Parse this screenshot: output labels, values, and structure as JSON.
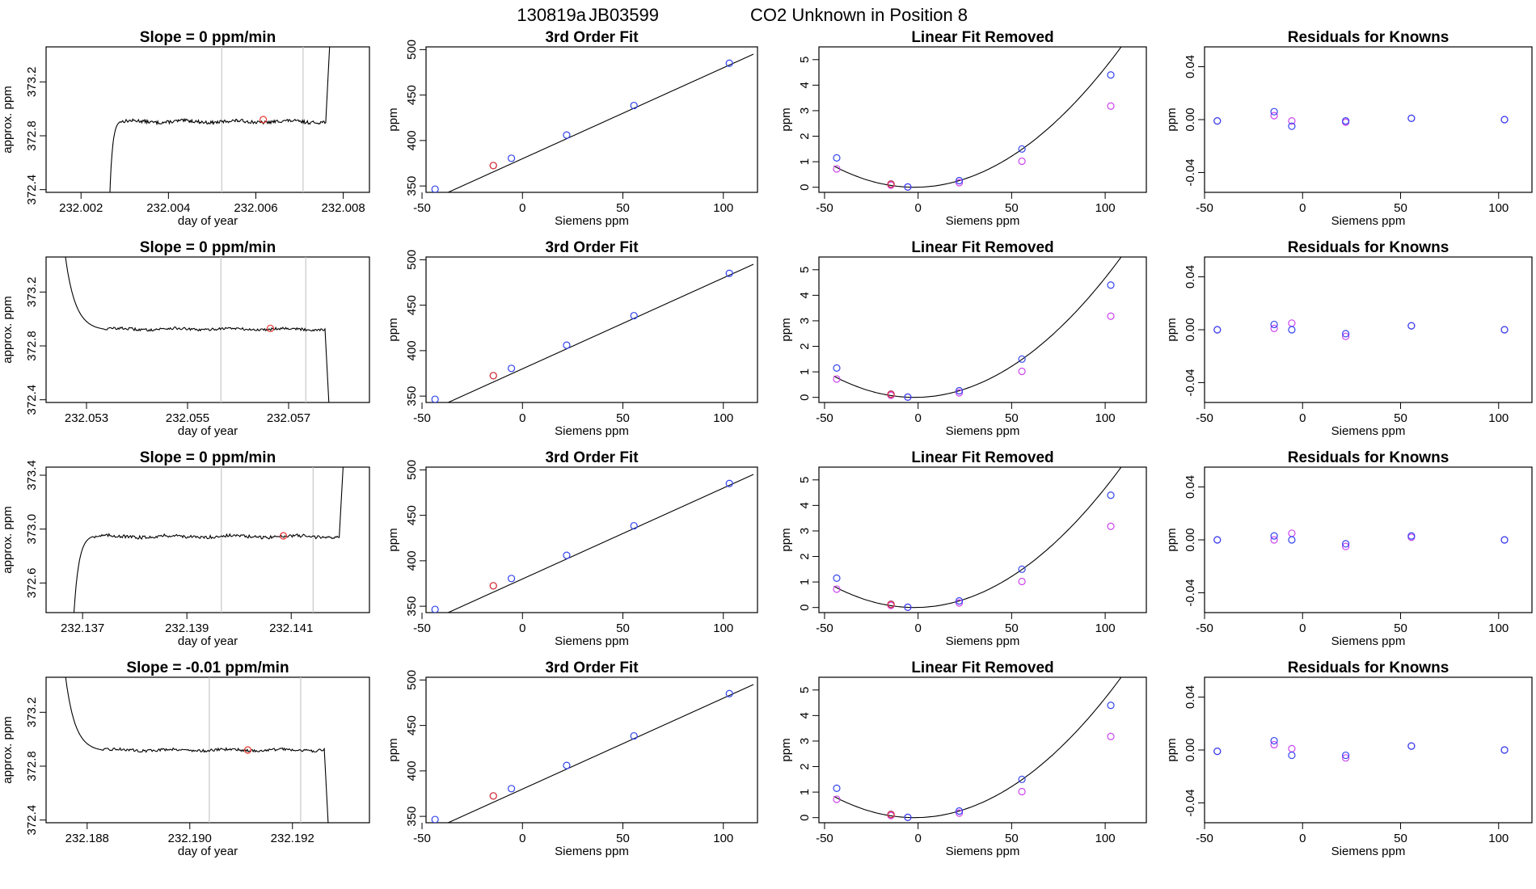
{
  "figure": {
    "title_run": "130819a",
    "title_tank": "JB03599",
    "title_desc": "CO2 Unknown in Position  8"
  },
  "colors": {
    "axis": "#000000",
    "trace": "#000000",
    "guide": "#c8c8c8",
    "point_red": "#e8352e",
    "point_blue": "#3344ee",
    "point_magenta": "#cc44ee"
  },
  "chart_data": [
    {
      "type": "line",
      "row": 0,
      "col": 0,
      "title": "Slope =  0  ppm/min",
      "xlabel": "day of year",
      "ylabel": "approx. ppm",
      "xlim": [
        232.0012,
        232.0086
      ],
      "ylim": [
        372.38,
        373.46
      ],
      "xticks": [
        232.002,
        232.004,
        232.006,
        232.008
      ],
      "xtick_labels": [
        "232.002",
        "232.004",
        "232.006",
        "232.008"
      ],
      "yticks": [
        372.4,
        372.8,
        373.2
      ],
      "ytick_labels": [
        "372.4",
        "372.8",
        "373.2"
      ],
      "vlines": [
        232.00522,
        232.00708
      ],
      "marker": {
        "x": 232.00617,
        "y": 372.92
      },
      "trace": {
        "x_start": 232.00265,
        "x_plateau": 232.0029,
        "level": 372.905,
        "x_end": 232.0076,
        "rise_to": 373.46,
        "noise": 0.012
      }
    },
    {
      "type": "line",
      "row": 1,
      "col": 0,
      "title": "Slope =  0  ppm/min",
      "xlabel": "day of year",
      "ylabel": "approx. ppm",
      "xlim": [
        232.0522,
        232.0586
      ],
      "ylim": [
        372.38,
        373.46
      ],
      "xticks": [
        232.053,
        232.055,
        232.057
      ],
      "xtick_labels": [
        "232.053",
        "232.055",
        "232.057"
      ],
      "yticks": [
        372.4,
        372.8,
        373.2
      ],
      "ytick_labels": [
        "372.4",
        "372.8",
        "373.2"
      ],
      "vlines": [
        232.05566,
        232.05734
      ],
      "marker": {
        "x": 232.05664,
        "y": 372.93
      },
      "trace": {
        "x_start": 232.05255,
        "x_plateau": 232.05335,
        "level": 372.925,
        "x_end": 232.05772,
        "rise_to": 372.38,
        "noise": 0.01
      }
    },
    {
      "type": "line",
      "row": 2,
      "col": 0,
      "title": "Slope =  0  ppm/min",
      "xlabel": "day of year",
      "ylabel": "approx. ppm",
      "xlim": [
        232.1363,
        232.1425
      ],
      "ylim": [
        372.38,
        373.46
      ],
      "xticks": [
        232.137,
        232.139,
        232.141
      ],
      "xtick_labels": [
        "232.137",
        "232.139",
        "232.141"
      ],
      "yticks": [
        372.6,
        373.0,
        373.4
      ],
      "ytick_labels": [
        "372.6",
        "373.0",
        "373.4"
      ],
      "vlines": [
        232.13966,
        232.14142
      ],
      "marker": {
        "x": 232.14085,
        "y": 372.95
      },
      "trace": {
        "x_start": 232.13682,
        "x_plateau": 232.1372,
        "level": 372.945,
        "x_end": 232.14192,
        "rise_to": 373.46,
        "noise": 0.012
      }
    },
    {
      "type": "line",
      "row": 3,
      "col": 0,
      "title": "Slope =  -0.01  ppm/min",
      "xlabel": "day of year",
      "ylabel": "approx. ppm",
      "xlim": [
        232.1872,
        232.1935
      ],
      "ylim": [
        372.38,
        373.46
      ],
      "xticks": [
        232.188,
        232.19,
        232.192
      ],
      "xtick_labels": [
        "232.188",
        "232.190",
        "232.192"
      ],
      "yticks": [
        372.4,
        372.8,
        373.2
      ],
      "ytick_labels": [
        "372.4",
        "372.8",
        "373.2"
      ],
      "vlines": [
        232.19038,
        232.19216
      ],
      "marker": {
        "x": 232.19113,
        "y": 372.92
      },
      "trace": {
        "x_start": 232.18755,
        "x_plateau": 232.1883,
        "level": 372.92,
        "x_end": 232.19262,
        "rise_to": 372.38,
        "noise": 0.01
      }
    },
    {
      "type": "scatter",
      "row": 0,
      "col": 1,
      "title": "3rd Order Fit",
      "xlabel": "Siemens ppm",
      "ylabel": "ppm",
      "xlim": [
        -48,
        117
      ],
      "ylim": [
        343,
        503
      ],
      "xticks": [
        -50,
        0,
        50,
        100
      ],
      "xtick_labels": [
        "-50",
        "0",
        "50",
        "100"
      ],
      "yticks": [
        350,
        400,
        450,
        500
      ],
      "ytick_labels": [
        "350",
        "400",
        "450",
        "500"
      ],
      "curve": {
        "x0": -45,
        "x1": 115,
        "coef": [
          380.0,
          1.0,
          0.0,
          0.0
        ]
      },
      "points_blue": {
        "x": [
          -43.5,
          -14.5,
          -5.5,
          22.0,
          55.5,
          103.0
        ],
        "y": [
          346.5,
          372.5,
          380.5,
          406.0,
          438.5,
          485.0
        ]
      },
      "points_red": {
        "x": [
          -14.5
        ],
        "y": [
          372.5
        ]
      }
    },
    {
      "type": "scatter",
      "row": 1,
      "col": 1,
      "title": "3rd Order Fit",
      "xlabel": "Siemens ppm",
      "ylabel": "ppm",
      "xlim": [
        -48,
        117
      ],
      "ylim": [
        343,
        503
      ],
      "xticks": [
        -50,
        0,
        50,
        100
      ],
      "xtick_labels": [
        "-50",
        "0",
        "50",
        "100"
      ],
      "yticks": [
        350,
        400,
        450,
        500
      ],
      "ytick_labels": [
        "350",
        "400",
        "450",
        "500"
      ],
      "curve": {
        "x0": -45,
        "x1": 115,
        "coef": [
          380.0,
          1.0,
          0.0,
          0.0
        ]
      },
      "points_blue": {
        "x": [
          -43.5,
          -14.5,
          -5.5,
          22.0,
          55.5,
          103.0
        ],
        "y": [
          346.5,
          372.5,
          380.5,
          406.0,
          438.5,
          485.0
        ]
      },
      "points_red": {
        "x": [
          -14.5
        ],
        "y": [
          372.5
        ]
      }
    },
    {
      "type": "scatter",
      "row": 2,
      "col": 1,
      "title": "3rd Order Fit",
      "xlabel": "Siemens ppm",
      "ylabel": "ppm",
      "xlim": [
        -48,
        117
      ],
      "ylim": [
        343,
        503
      ],
      "xticks": [
        -50,
        0,
        50,
        100
      ],
      "xtick_labels": [
        "-50",
        "0",
        "50",
        "100"
      ],
      "yticks": [
        350,
        400,
        450,
        500
      ],
      "ytick_labels": [
        "350",
        "400",
        "450",
        "500"
      ],
      "curve": {
        "x0": -45,
        "x1": 115,
        "coef": [
          380.0,
          1.0,
          0.0,
          0.0
        ]
      },
      "points_blue": {
        "x": [
          -43.5,
          -14.5,
          -5.5,
          22.0,
          55.5,
          103.0
        ],
        "y": [
          346.5,
          372.5,
          380.5,
          406.0,
          438.5,
          485.0
        ]
      },
      "points_red": {
        "x": [
          -14.5
        ],
        "y": [
          372.5
        ]
      }
    },
    {
      "type": "scatter",
      "row": 3,
      "col": 1,
      "title": "3rd Order Fit",
      "xlabel": "Siemens ppm",
      "ylabel": "ppm",
      "xlim": [
        -48,
        117
      ],
      "ylim": [
        343,
        503
      ],
      "xticks": [
        -50,
        0,
        50,
        100
      ],
      "xtick_labels": [
        "-50",
        "0",
        "50",
        "100"
      ],
      "yticks": [
        350,
        400,
        450,
        500
      ],
      "ytick_labels": [
        "350",
        "400",
        "450",
        "500"
      ],
      "curve": {
        "x0": -45,
        "x1": 115,
        "coef": [
          380.0,
          1.0,
          0.0,
          0.0
        ]
      },
      "points_blue": {
        "x": [
          -43.5,
          -14.5,
          -5.5,
          22.0,
          55.5,
          103.0
        ],
        "y": [
          346.5,
          372.5,
          380.5,
          406.0,
          438.5,
          485.0
        ]
      },
      "points_red": {
        "x": [
          -14.5
        ],
        "y": [
          372.5
        ]
      }
    },
    {
      "type": "scatter",
      "row": 0,
      "col": 2,
      "title": "Linear Fit Removed",
      "xlabel": "Siemens ppm",
      "ylabel": "ppm",
      "xlim": [
        -53,
        122
      ],
      "ylim": [
        -0.2,
        5.5
      ],
      "xticks": [
        -50,
        0,
        50,
        100
      ],
      "xtick_labels": [
        "-50",
        "0",
        "50",
        "100"
      ],
      "yticks": [
        0,
        1,
        2,
        3,
        4,
        5
      ],
      "ytick_labels": [
        "0",
        "1",
        "2",
        "3",
        "4",
        "5"
      ],
      "curve": {
        "x0": -45,
        "x1": 118,
        "coef": [
          0.0,
          0.0,
          0.00045,
          0.0
        ],
        "shift": -2.0
      },
      "points_blue": {
        "x": [
          -43.5,
          -14.5,
          -5.5,
          22.0,
          55.5,
          103.0
        ],
        "y": [
          1.15,
          0.13,
          0.01,
          0.26,
          1.5,
          4.4
        ]
      },
      "points_magenta": {
        "x": [
          -43.5,
          -14.5,
          -5.5,
          22.0,
          55.5,
          103.0
        ],
        "y": [
          0.72,
          0.08,
          0.01,
          0.18,
          1.02,
          3.18
        ]
      },
      "points_red": {
        "x": [
          -14.5
        ],
        "y": [
          0.12
        ]
      }
    },
    {
      "type": "scatter",
      "row": 1,
      "col": 2,
      "title": "Linear Fit Removed",
      "xlabel": "Siemens ppm",
      "ylabel": "ppm",
      "xlim": [
        -53,
        122
      ],
      "ylim": [
        -0.2,
        5.5
      ],
      "xticks": [
        -50,
        0,
        50,
        100
      ],
      "xtick_labels": [
        "-50",
        "0",
        "50",
        "100"
      ],
      "yticks": [
        0,
        1,
        2,
        3,
        4,
        5
      ],
      "ytick_labels": [
        "0",
        "1",
        "2",
        "3",
        "4",
        "5"
      ],
      "curve": {
        "x0": -45,
        "x1": 118,
        "coef": [
          0.0,
          0.0,
          0.00045,
          0.0
        ],
        "shift": -2.0
      },
      "points_blue": {
        "x": [
          -43.5,
          -14.5,
          -5.5,
          22.0,
          55.5,
          103.0
        ],
        "y": [
          1.15,
          0.13,
          0.01,
          0.26,
          1.5,
          4.4
        ]
      },
      "points_magenta": {
        "x": [
          -43.5,
          -14.5,
          -5.5,
          22.0,
          55.5,
          103.0
        ],
        "y": [
          0.72,
          0.08,
          0.01,
          0.18,
          1.02,
          3.18
        ]
      },
      "points_red": {
        "x": [
          -14.5
        ],
        "y": [
          0.12
        ]
      }
    },
    {
      "type": "scatter",
      "row": 2,
      "col": 2,
      "title": "Linear Fit Removed",
      "xlabel": "Siemens ppm",
      "ylabel": "ppm",
      "xlim": [
        -53,
        122
      ],
      "ylim": [
        -0.2,
        5.5
      ],
      "xticks": [
        -50,
        0,
        50,
        100
      ],
      "xtick_labels": [
        "-50",
        "0",
        "50",
        "100"
      ],
      "yticks": [
        0,
        1,
        2,
        3,
        4,
        5
      ],
      "ytick_labels": [
        "0",
        "1",
        "2",
        "3",
        "4",
        "5"
      ],
      "curve": {
        "x0": -45,
        "x1": 118,
        "coef": [
          0.0,
          0.0,
          0.00045,
          0.0
        ],
        "shift": -2.0
      },
      "points_blue": {
        "x": [
          -43.5,
          -14.5,
          -5.5,
          22.0,
          55.5,
          103.0
        ],
        "y": [
          1.15,
          0.13,
          0.01,
          0.26,
          1.5,
          4.4
        ]
      },
      "points_magenta": {
        "x": [
          -43.5,
          -14.5,
          -5.5,
          22.0,
          55.5,
          103.0
        ],
        "y": [
          0.72,
          0.08,
          0.01,
          0.18,
          1.02,
          3.18
        ]
      },
      "points_red": {
        "x": [
          -14.5
        ],
        "y": [
          0.12
        ]
      }
    },
    {
      "type": "scatter",
      "row": 3,
      "col": 2,
      "title": "Linear Fit Removed",
      "xlabel": "Siemens ppm",
      "ylabel": "ppm",
      "xlim": [
        -53,
        122
      ],
      "ylim": [
        -0.2,
        5.5
      ],
      "xticks": [
        -50,
        0,
        50,
        100
      ],
      "xtick_labels": [
        "-50",
        "0",
        "50",
        "100"
      ],
      "yticks": [
        0,
        1,
        2,
        3,
        4,
        5
      ],
      "ytick_labels": [
        "0",
        "1",
        "2",
        "3",
        "4",
        "5"
      ],
      "curve": {
        "x0": -45,
        "x1": 118,
        "coef": [
          0.0,
          0.0,
          0.00045,
          0.0
        ],
        "shift": -2.0
      },
      "points_blue": {
        "x": [
          -43.5,
          -14.5,
          -5.5,
          22.0,
          55.5,
          103.0
        ],
        "y": [
          1.15,
          0.13,
          0.01,
          0.26,
          1.5,
          4.4
        ]
      },
      "points_magenta": {
        "x": [
          -43.5,
          -14.5,
          -5.5,
          22.0,
          55.5,
          103.0
        ],
        "y": [
          0.72,
          0.08,
          0.01,
          0.18,
          1.02,
          3.18
        ]
      },
      "points_red": {
        "x": [
          -14.5
        ],
        "y": [
          0.12
        ]
      }
    },
    {
      "type": "scatter",
      "row": 0,
      "col": 3,
      "title": "Residuals for Knowns",
      "xlabel": "Siemens ppm",
      "ylabel": "ppm",
      "xlim": [
        -50,
        117
      ],
      "ylim": [
        -0.055,
        0.055
      ],
      "xticks": [
        -50,
        0,
        50,
        100
      ],
      "xtick_labels": [
        "-50",
        "0",
        "50",
        "100"
      ],
      "yticks": [
        -0.04,
        0.0,
        0.04
      ],
      "ytick_labels": [
        "-0.04",
        "0.00",
        "0.04"
      ],
      "points_blue": {
        "x": [
          -43.5,
          -14.5,
          -5.5,
          22.0,
          55.5,
          103.0
        ],
        "y": [
          -0.001,
          0.006,
          -0.005,
          -0.001,
          0.001,
          0.0
        ]
      },
      "points_magenta": {
        "x": [
          -43.5,
          -14.5,
          -5.5,
          22.0,
          55.5,
          103.0
        ],
        "y": [
          -0.001,
          0.003,
          -0.001,
          -0.002,
          0.001,
          0.0
        ]
      }
    },
    {
      "type": "scatter",
      "row": 1,
      "col": 3,
      "title": "Residuals for Knowns",
      "xlabel": "Siemens ppm",
      "ylabel": "ppm",
      "xlim": [
        -50,
        117
      ],
      "ylim": [
        -0.055,
        0.055
      ],
      "xticks": [
        -50,
        0,
        50,
        100
      ],
      "xtick_labels": [
        "-50",
        "0",
        "50",
        "100"
      ],
      "yticks": [
        -0.04,
        0.0,
        0.04
      ],
      "ytick_labels": [
        "-0.04",
        "0.00",
        "0.04"
      ],
      "points_blue": {
        "x": [
          -43.5,
          -14.5,
          -5.5,
          22.0,
          55.5,
          103.0
        ],
        "y": [
          0.0,
          0.004,
          0.0,
          -0.003,
          0.003,
          0.0
        ]
      },
      "points_magenta": {
        "x": [
          -43.5,
          -14.5,
          -5.5,
          22.0,
          55.5,
          103.0
        ],
        "y": [
          0.0,
          0.001,
          0.005,
          -0.005,
          0.003,
          0.0
        ]
      }
    },
    {
      "type": "scatter",
      "row": 2,
      "col": 3,
      "title": "Residuals for Knowns",
      "xlabel": "Siemens ppm",
      "ylabel": "ppm",
      "xlim": [
        -50,
        117
      ],
      "ylim": [
        -0.055,
        0.055
      ],
      "xticks": [
        -50,
        0,
        50,
        100
      ],
      "xtick_labels": [
        "-50",
        "0",
        "50",
        "100"
      ],
      "yticks": [
        -0.04,
        0.0,
        0.04
      ],
      "ytick_labels": [
        "-0.04",
        "0.00",
        "0.04"
      ],
      "points_blue": {
        "x": [
          -43.5,
          -14.5,
          -5.5,
          22.0,
          55.5,
          103.0
        ],
        "y": [
          0.0,
          0.003,
          0.0,
          -0.003,
          0.003,
          0.0
        ]
      },
      "points_magenta": {
        "x": [
          -43.5,
          -14.5,
          -5.5,
          22.0,
          55.5,
          103.0
        ],
        "y": [
          0.0,
          0.0,
          0.005,
          -0.005,
          0.002,
          0.0
        ]
      }
    },
    {
      "type": "scatter",
      "row": 3,
      "col": 3,
      "title": "Residuals for Knowns",
      "xlabel": "Siemens ppm",
      "ylabel": "ppm",
      "xlim": [
        -50,
        117
      ],
      "ylim": [
        -0.055,
        0.055
      ],
      "xticks": [
        -50,
        0,
        50,
        100
      ],
      "xtick_labels": [
        "-50",
        "0",
        "50",
        "100"
      ],
      "yticks": [
        -0.04,
        0.0,
        0.04
      ],
      "ytick_labels": [
        "-0.04",
        "0.00",
        "0.04"
      ],
      "points_blue": {
        "x": [
          -43.5,
          -14.5,
          -5.5,
          22.0,
          55.5,
          103.0
        ],
        "y": [
          -0.001,
          0.007,
          -0.004,
          -0.004,
          0.003,
          0.0
        ]
      },
      "points_magenta": {
        "x": [
          -43.5,
          -14.5,
          -5.5,
          22.0,
          55.5,
          103.0
        ],
        "y": [
          -0.001,
          0.004,
          0.001,
          -0.006,
          0.003,
          0.0
        ]
      }
    }
  ]
}
